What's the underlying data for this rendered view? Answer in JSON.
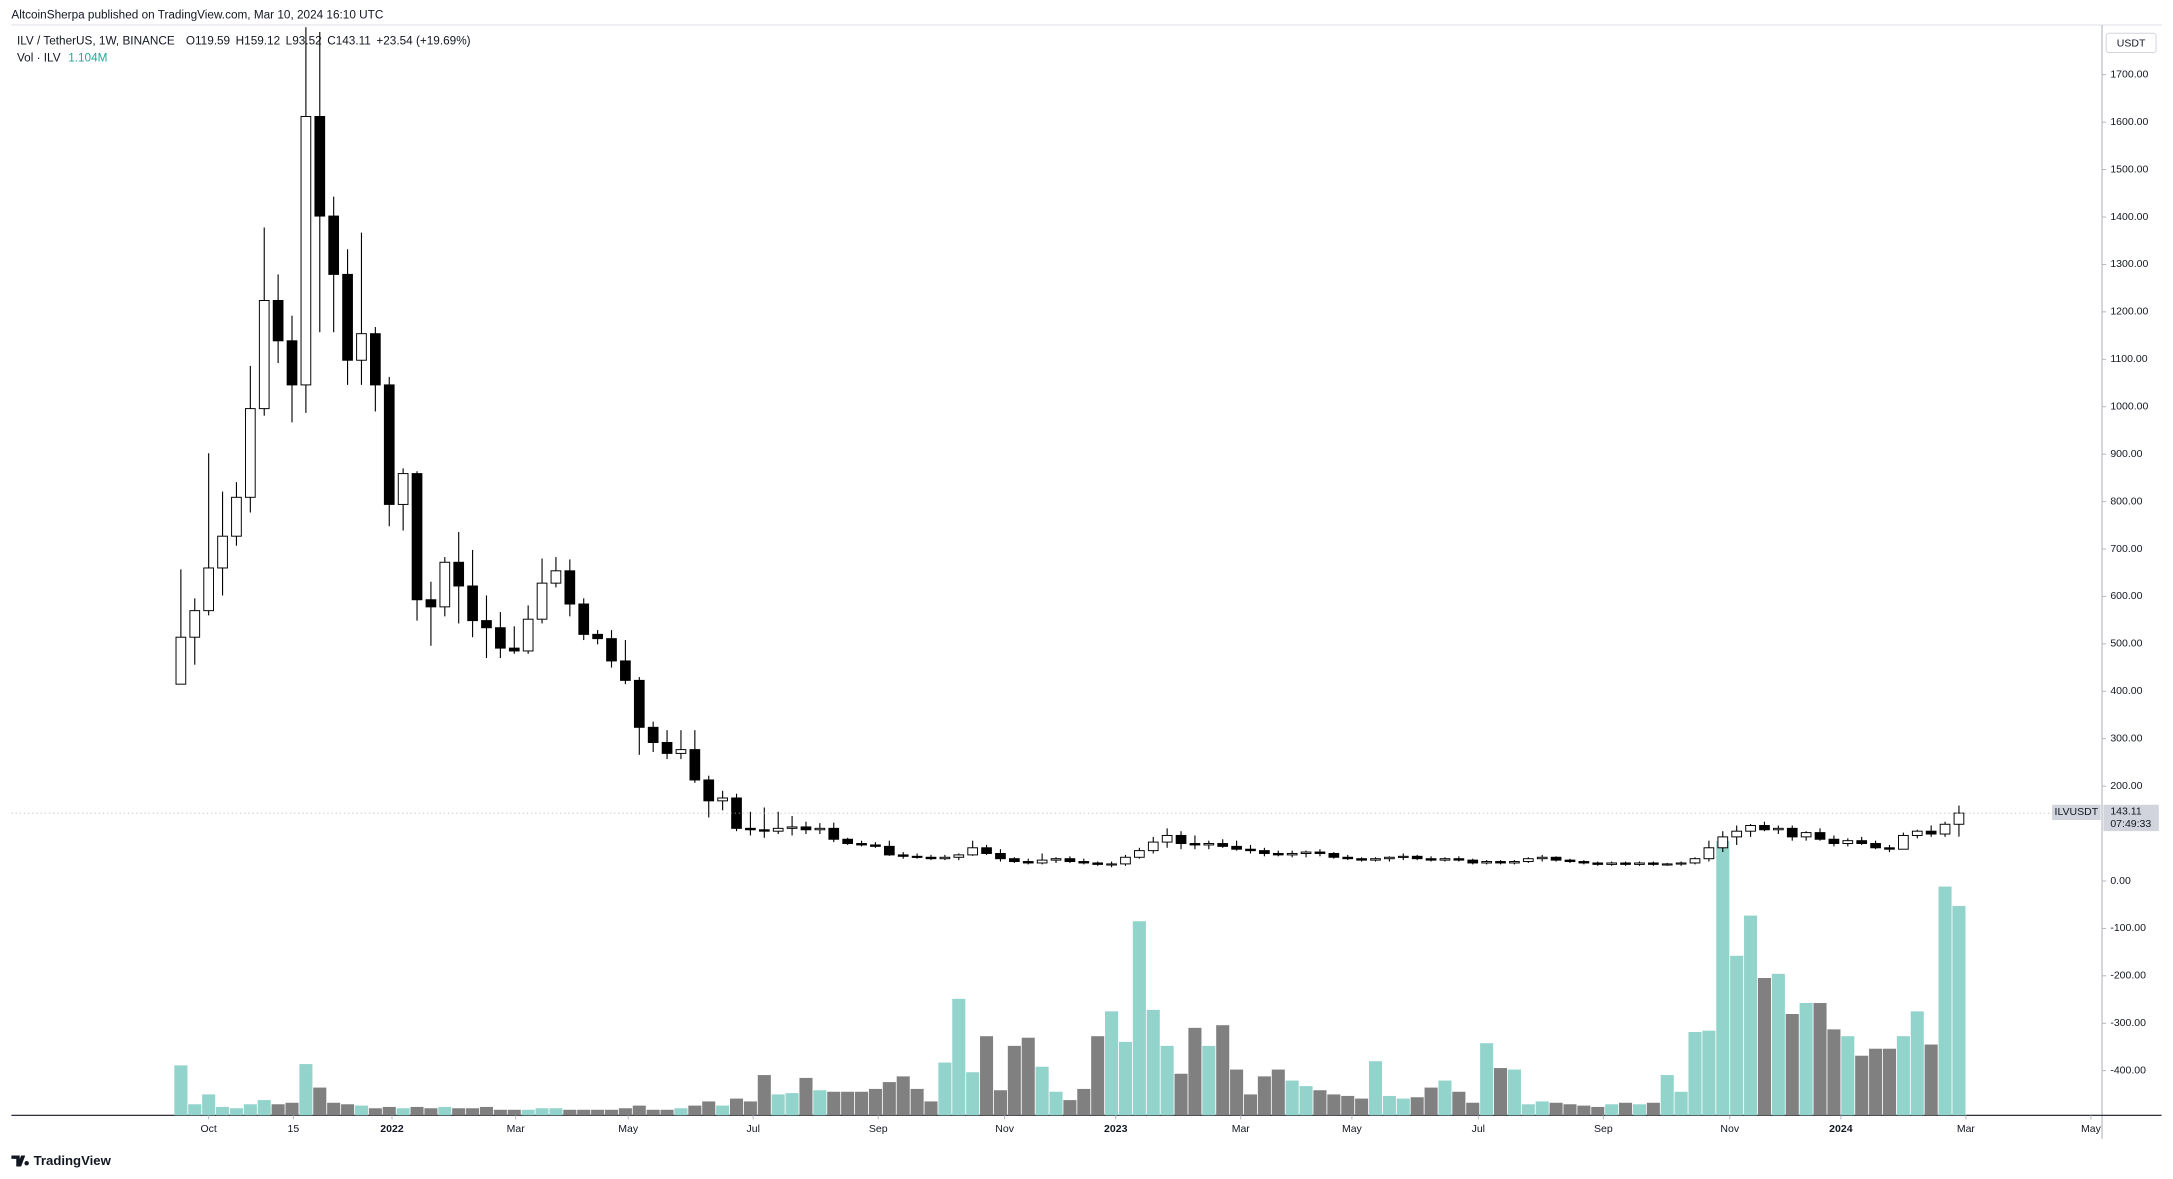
{
  "header": {
    "publisher": "AltcoinSherpa published on TradingView.com, Mar 10, 2024 16:10 UTC"
  },
  "chart_data": {
    "type": "candlestick",
    "symbol": "ILV / TetherUS, 1W, BINANCE",
    "legend_ohlc": [
      "O119.59",
      "H159.12",
      "L93.52",
      "C143.11",
      "+23.54 (+19.69%)"
    ],
    "volume_label": "Vol · ILV",
    "volume_value_label": "1.104M",
    "currency": "USDT",
    "symbol_tag": "ILVUSDT",
    "last_price_label": "143.11",
    "countdown": "07:49:33",
    "open": [
      415,
      514,
      570,
      660,
      727,
      809,
      996,
      1224,
      1139,
      1046,
      1612,
      1402,
      1279,
      1098,
      1154,
      1046,
      794,
      859,
      593,
      578,
      672,
      622,
      549,
      534,
      491,
      485,
      552,
      628,
      654,
      584,
      520,
      511,
      464,
      423,
      324,
      292,
      269,
      277,
      213,
      169,
      175,
      111,
      108,
      105,
      111,
      114,
      108,
      111,
      88,
      79,
      76,
      73,
      55,
      52,
      50,
      47,
      50,
      55,
      70,
      58,
      47,
      41,
      38,
      44,
      47,
      41,
      38,
      35,
      36,
      50,
      64,
      82,
      96,
      79,
      76,
      79,
      73,
      67,
      64,
      58,
      55,
      58,
      61,
      58,
      50,
      47,
      44,
      47,
      50,
      52,
      47,
      44,
      47,
      44,
      38,
      41,
      38,
      41,
      47,
      50,
      44,
      41,
      38,
      35,
      38,
      35,
      38,
      35,
      36,
      38,
      47,
      70,
      93,
      105,
      117,
      108,
      111,
      93,
      102,
      88,
      79,
      85,
      79,
      70,
      67,
      96,
      105,
      99,
      119.59
    ],
    "high": [
      657,
      596,
      902,
      821,
      841,
      1086,
      1378,
      1279,
      1192,
      1800,
      1790,
      1443,
      1332,
      1367,
      1168,
      1063,
      870,
      864,
      631,
      683,
      736,
      698,
      602,
      567,
      537,
      581,
      680,
      683,
      678,
      596,
      529,
      529,
      508,
      430,
      336,
      318,
      318,
      318,
      222,
      190,
      184,
      146,
      155,
      146,
      137,
      125,
      122,
      123,
      91,
      85,
      82,
      85,
      61,
      58,
      55,
      55,
      58,
      85,
      76,
      67,
      50,
      47,
      58,
      50,
      52,
      47,
      41,
      41,
      55,
      70,
      93,
      111,
      105,
      96,
      85,
      88,
      85,
      76,
      70,
      64,
      64,
      64,
      67,
      61,
      55,
      50,
      50,
      52,
      58,
      55,
      52,
      50,
      52,
      47,
      44,
      44,
      44,
      50,
      55,
      52,
      47,
      44,
      41,
      41,
      41,
      41,
      41,
      38,
      41,
      50,
      85,
      105,
      117,
      120,
      125,
      117,
      117,
      105,
      111,
      96,
      90,
      93,
      85,
      76,
      102,
      108,
      117,
      125,
      159.12
    ],
    "low": [
      415,
      456,
      560,
      602,
      707,
      777,
      981,
      1092,
      967,
      987,
      1157,
      1157,
      1046,
      1046,
      990,
      748,
      739,
      549,
      496,
      558,
      543,
      514,
      470,
      470,
      479,
      479,
      543,
      619,
      558,
      508,
      499,
      450,
      415,
      266,
      272,
      257,
      257,
      207,
      134,
      149,
      105,
      96,
      91,
      99,
      96,
      99,
      99,
      82,
      76,
      73,
      70,
      53,
      47,
      47,
      44,
      44,
      44,
      53,
      55,
      41,
      38,
      35,
      35,
      38,
      38,
      35,
      32,
      29,
      32,
      47,
      58,
      70,
      67,
      67,
      67,
      70,
      64,
      58,
      52,
      52,
      50,
      50,
      52,
      47,
      44,
      41,
      41,
      41,
      44,
      44,
      41,
      41,
      41,
      35,
      35,
      35,
      35,
      38,
      41,
      41,
      38,
      35,
      32,
      32,
      32,
      32,
      32,
      32,
      32,
      35,
      41,
      61,
      76,
      93,
      105,
      99,
      85,
      85,
      85,
      73,
      73,
      76,
      67,
      61,
      67,
      90,
      93,
      93,
      93.52
    ],
    "close": [
      514,
      570,
      660,
      727,
      809,
      996,
      1224,
      1139,
      1046,
      1612,
      1402,
      1279,
      1098,
      1154,
      1046,
      794,
      859,
      593,
      578,
      672,
      622,
      549,
      534,
      491,
      485,
      552,
      628,
      654,
      584,
      520,
      511,
      464,
      423,
      324,
      292,
      269,
      277,
      213,
      169,
      175,
      111,
      108,
      105,
      111,
      114,
      108,
      111,
      88,
      79,
      76,
      73,
      55,
      52,
      50,
      47,
      50,
      55,
      70,
      58,
      47,
      41,
      38,
      44,
      47,
      41,
      38,
      35,
      36,
      50,
      64,
      82,
      96,
      79,
      76,
      79,
      73,
      67,
      64,
      58,
      55,
      58,
      61,
      58,
      50,
      47,
      44,
      47,
      50,
      52,
      47,
      44,
      47,
      44,
      38,
      41,
      38,
      41,
      47,
      50,
      44,
      41,
      38,
      35,
      38,
      35,
      38,
      35,
      36,
      38,
      47,
      70,
      93,
      105,
      117,
      108,
      111,
      93,
      102,
      88,
      79,
      85,
      79,
      70,
      67,
      96,
      105,
      99,
      119.59,
      143.11
    ],
    "volume": [
      0.263,
      0.058,
      0.11,
      0.044,
      0.037,
      0.058,
      0.08,
      0.058,
      0.066,
      0.27,
      0.146,
      0.066,
      0.058,
      0.051,
      0.037,
      0.044,
      0.037,
      0.044,
      0.037,
      0.044,
      0.037,
      0.037,
      0.044,
      0.029,
      0.029,
      0.029,
      0.037,
      0.037,
      0.029,
      0.029,
      0.029,
      0.029,
      0.037,
      0.051,
      0.029,
      0.029,
      0.037,
      0.051,
      0.073,
      0.051,
      0.088,
      0.073,
      0.212,
      0.11,
      0.117,
      0.197,
      0.132,
      0.124,
      0.124,
      0.124,
      0.139,
      0.175,
      0.205,
      0.139,
      0.073,
      0.278,
      0.614,
      0.227,
      0.417,
      0.132,
      0.366,
      0.409,
      0.256,
      0.124,
      0.08,
      0.139,
      0.417,
      0.548,
      0.387,
      1.023,
      0.556,
      0.366,
      0.219,
      0.461,
      0.366,
      0.475,
      0.241,
      0.11,
      0.205,
      0.241,
      0.183,
      0.154,
      0.132,
      0.11,
      0.102,
      0.088,
      0.285,
      0.102,
      0.088,
      0.095,
      0.146,
      0.183,
      0.124,
      0.066,
      0.38,
      0.249,
      0.241,
      0.058,
      0.073,
      0.066,
      0.058,
      0.051,
      0.044,
      0.058,
      0.066,
      0.058,
      0.066,
      0.212,
      0.124,
      0.439,
      0.446,
      1.447,
      0.841,
      1.053,
      0.724,
      0.746,
      0.534,
      0.592,
      0.592,
      0.453,
      0.417,
      0.314,
      0.351,
      0.351,
      0.417,
      0.548,
      0.373,
      1.206,
      1.104
    ],
    "xlim": [
      -12.2,
      138.3
    ],
    "xticks": [
      {
        "value": 2.0,
        "label": "Oct"
      },
      {
        "value": 8.1,
        "label": "15"
      },
      {
        "value": 15.2,
        "label": "2022"
      },
      {
        "value": 24.1,
        "label": "Mar"
      },
      {
        "value": 32.2,
        "label": "May"
      },
      {
        "value": 41.2,
        "label": "Jul"
      },
      {
        "value": 50.2,
        "label": "Sep"
      },
      {
        "value": 59.3,
        "label": "Nov"
      },
      {
        "value": 67.3,
        "label": "2023"
      },
      {
        "value": 76.3,
        "label": "Mar"
      },
      {
        "value": 84.3,
        "label": "May"
      },
      {
        "value": 93.4,
        "label": "Jul"
      },
      {
        "value": 102.4,
        "label": "Sep"
      },
      {
        "value": 111.5,
        "label": "Nov"
      },
      {
        "value": 119.5,
        "label": "2024"
      },
      {
        "value": 128.5,
        "label": "Mar"
      },
      {
        "value": 137.5,
        "label": "May"
      }
    ],
    "ylim": [
      -494,
      1805
    ],
    "yticks": [
      {
        "value": 1700,
        "label": "1700.00"
      },
      {
        "value": 1600,
        "label": "1600.00"
      },
      {
        "value": 1500,
        "label": "1500.00"
      },
      {
        "value": 1400,
        "label": "1400.00"
      },
      {
        "value": 1300,
        "label": "1300.00"
      },
      {
        "value": 1200,
        "label": "1200.00"
      },
      {
        "value": 1100,
        "label": "1100.00"
      },
      {
        "value": 1000,
        "label": "1000.00"
      },
      {
        "value": 900,
        "label": "900.00"
      },
      {
        "value": 800,
        "label": "800.00"
      },
      {
        "value": 700,
        "label": "700.00"
      },
      {
        "value": 600,
        "label": "600.00"
      },
      {
        "value": 500,
        "label": "500.00"
      },
      {
        "value": 400,
        "label": "400.00"
      },
      {
        "value": 300,
        "label": "300.00"
      },
      {
        "value": 200,
        "label": "200.00"
      },
      {
        "value": 0,
        "label": "0.00"
      },
      {
        "value": -100,
        "label": "-100.00"
      },
      {
        "value": -200,
        "label": "-200.00"
      },
      {
        "value": -300,
        "label": "-300.00"
      },
      {
        "value": -400,
        "label": "-400.00"
      }
    ],
    "vlim": [
      0,
      5.75
    ],
    "up_color": "#ffffff",
    "down_color": "#000000",
    "border_color": "#000000",
    "volume_up_color": "#92d3cc",
    "volume_down_color": "#808080",
    "volume_label_color": "#26a69a",
    "grid": false
  },
  "footer": {
    "brand": "TradingView"
  }
}
